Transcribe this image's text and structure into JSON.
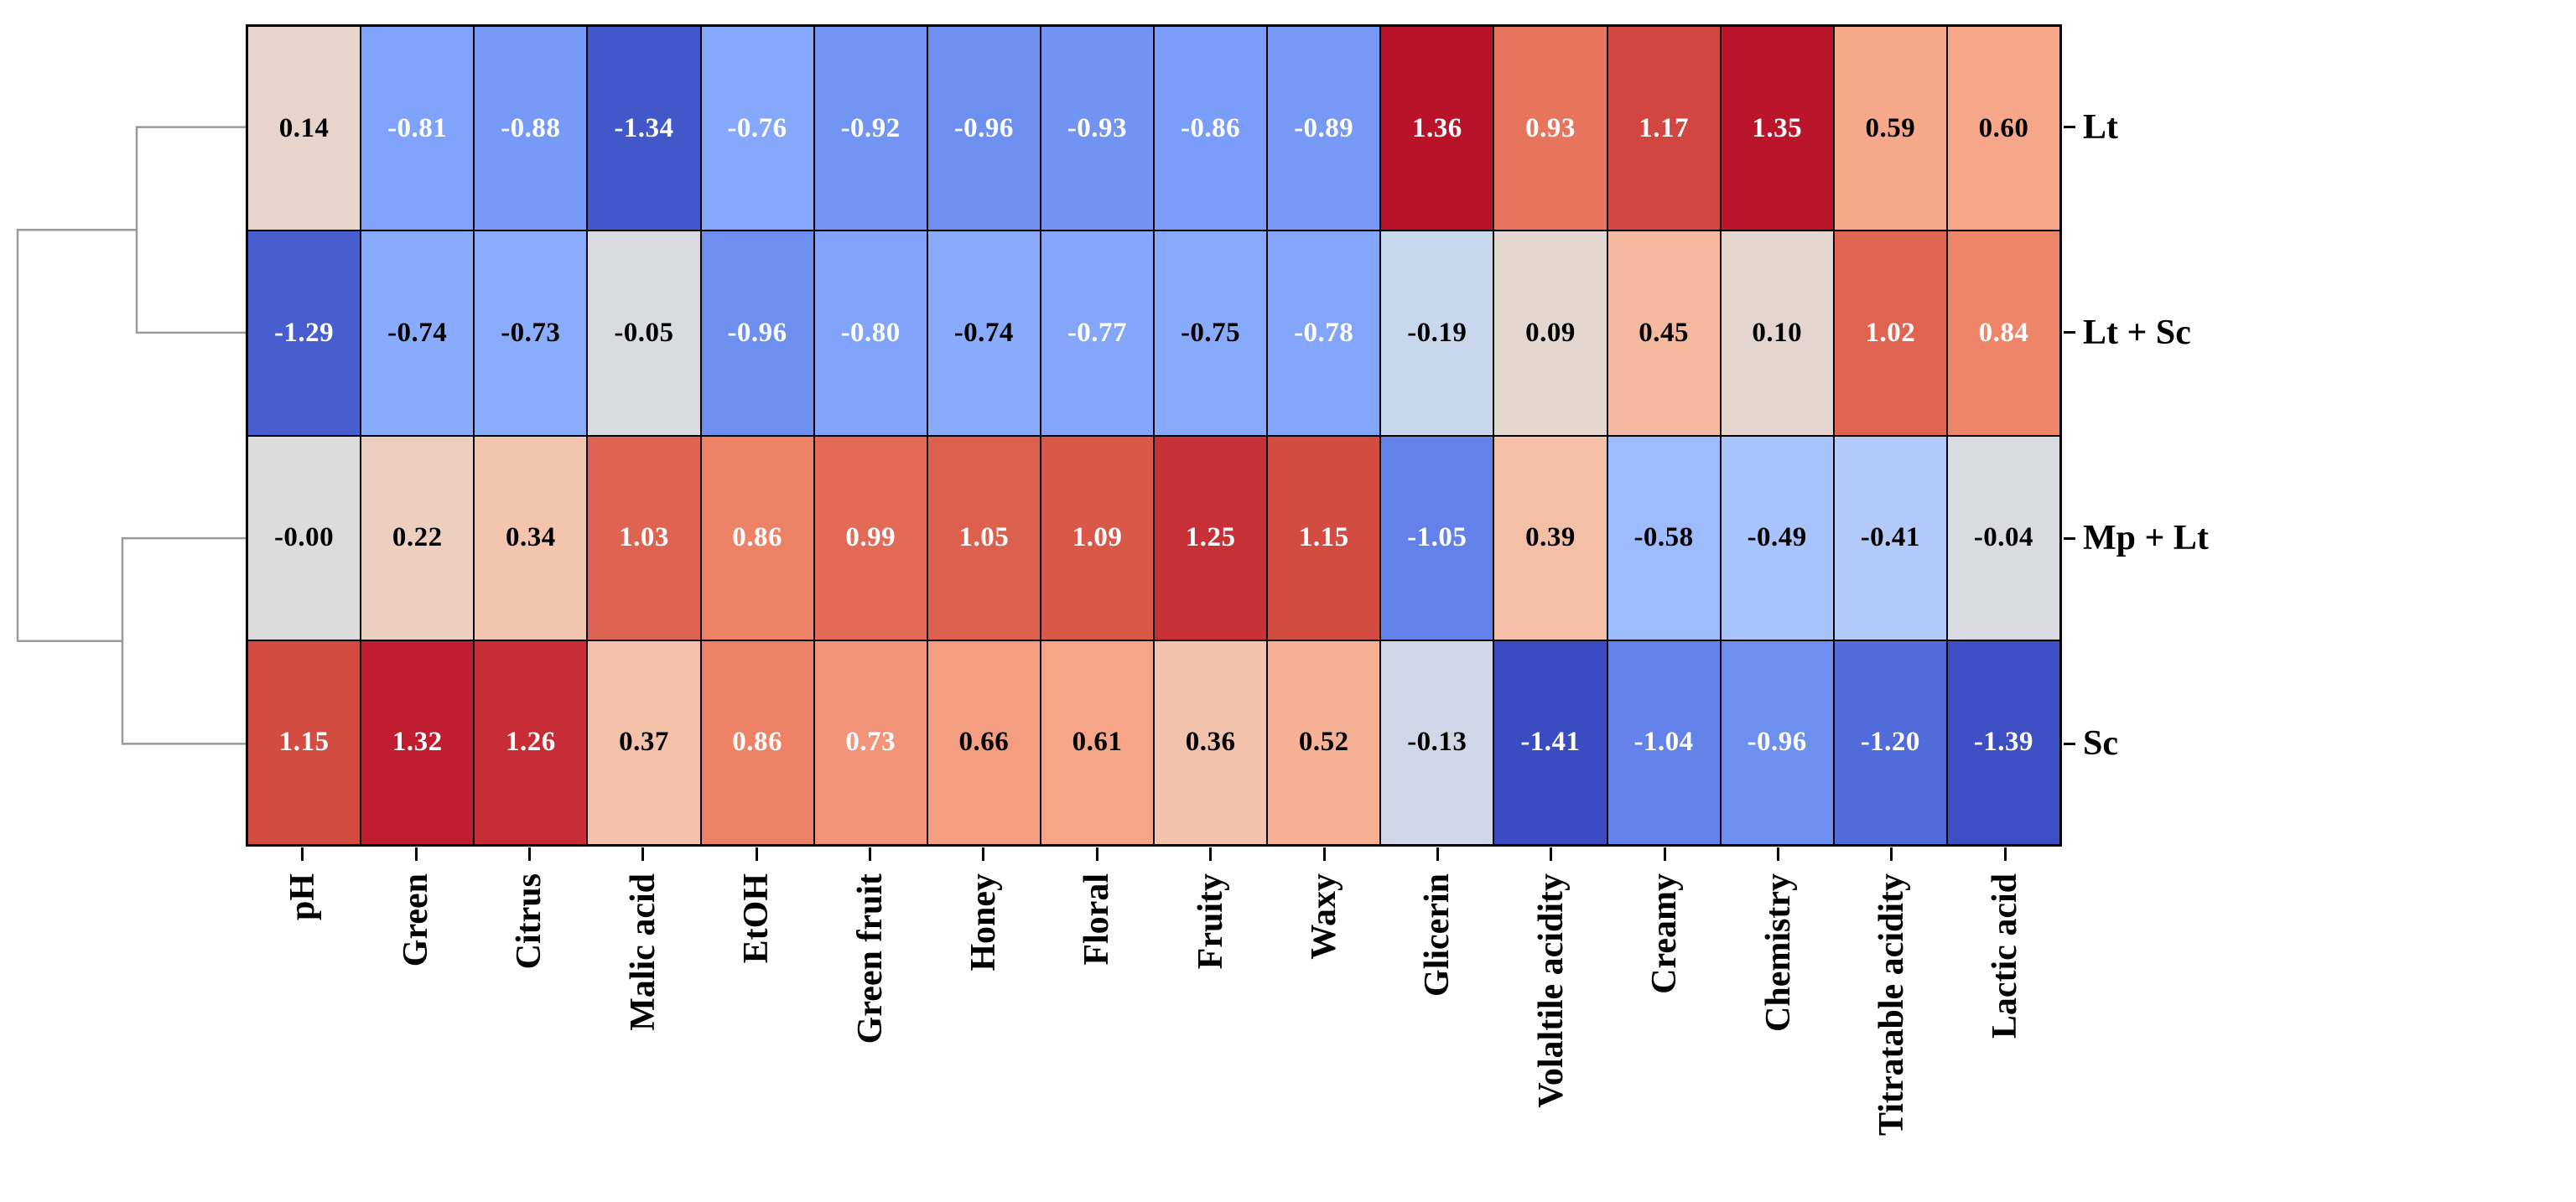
{
  "figure": {
    "kind": "clustermap",
    "background": "#ffffff"
  },
  "chart_data": {
    "type": "heatmap",
    "title": "",
    "rows": [
      "Lt",
      "Lt + Sc",
      "Mp + Lt",
      "Sc"
    ],
    "columns": [
      "pH",
      "Green",
      "Citrus",
      "Malic acid",
      "EtOH",
      "Green fruit",
      "Honey",
      "Floral",
      "Fruity",
      "Waxy",
      "Glicerin",
      "Volaltile acidity",
      "Creamy",
      "Chemistry",
      "Titratable acidity",
      "Lactic acid"
    ],
    "values": [
      [
        "0.14",
        "-0.81",
        "-0.88",
        "-1.34",
        "-0.76",
        "-0.92",
        "-0.96",
        "-0.93",
        "-0.86",
        "-0.89",
        "1.36",
        "0.93",
        "1.17",
        "1.35",
        "0.59",
        "0.60"
      ],
      [
        "-1.29",
        "-0.74",
        "-0.73",
        "-0.05",
        "-0.96",
        "-0.80",
        "-0.74",
        "-0.77",
        "-0.75",
        "-0.78",
        "-0.19",
        "0.09",
        "0.45",
        "0.10",
        "1.02",
        "0.84"
      ],
      [
        "-0.00",
        "0.22",
        "0.34",
        "1.03",
        "0.86",
        "0.99",
        "1.05",
        "1.09",
        "1.25",
        "1.15",
        "-1.05",
        "0.39",
        "-0.58",
        "-0.49",
        "-0.41",
        "-0.04"
      ],
      [
        "1.15",
        "1.32",
        "1.26",
        "0.37",
        "0.86",
        "0.73",
        "0.66",
        "0.61",
        "0.36",
        "0.52",
        "-0.13",
        "-1.41",
        "-1.04",
        "-0.96",
        "-1.20",
        "-1.39"
      ]
    ],
    "annotations_shown": true,
    "colormap": {
      "name": "coolwarm",
      "vmin": -1.41,
      "vmax": 1.41,
      "anchors": [
        "#3b4cc0",
        "#5977e3",
        "#7b9ff9",
        "#9ebeff",
        "#c0d4f5",
        "#dddcdc",
        "#f2cbb7",
        "#f7ac8e",
        "#ee8468",
        "#d65244",
        "#b40426"
      ]
    },
    "dendrogram": {
      "side": "left",
      "line_color": "#9a9a9a",
      "structure": "((Lt, Lt + Sc), (Mp + Lt, Sc))"
    },
    "grid": "black cell borders",
    "legend_position": "none"
  },
  "colors": {
    "cell_border": "#000000",
    "annotation_dark": "#000000",
    "annotation_light": "#ffffff",
    "tick": "#000000",
    "label_text": "#000000"
  }
}
